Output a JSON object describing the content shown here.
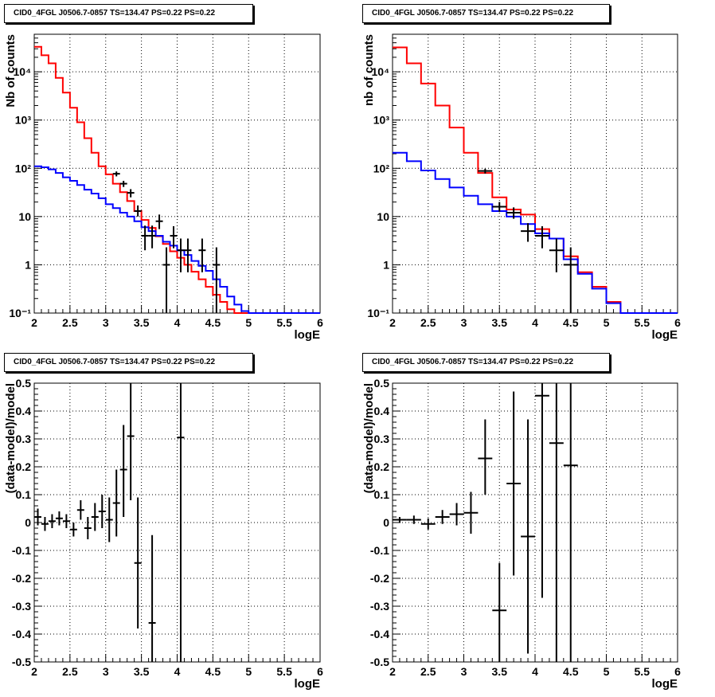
{
  "colors": {
    "data": "#000000",
    "total_model": "#ff0000",
    "component_model": "#0000ff"
  },
  "chart_data": [
    {
      "type": "line",
      "title": "CID0_4FGL J0506.7-0857 TS=134.47 PS=0.22 PS=0.22",
      "xlabel": "logE",
      "ylabel": "Nb of counts",
      "xlim": [
        2,
        6
      ],
      "ylim": [
        0.1,
        60000
      ],
      "yscale": "log",
      "grid": true,
      "xticks": [
        "2",
        "2.5",
        "3",
        "3.5",
        "4",
        "4.5",
        "5",
        "5.5",
        "6"
      ],
      "yticks": [
        {
          "value": 0.1,
          "label": "10⁻¹"
        },
        {
          "value": 1,
          "label": "1"
        },
        {
          "value": 10,
          "label": "10"
        },
        {
          "value": 100,
          "label": "10²"
        },
        {
          "value": 1000,
          "label": "10³"
        },
        {
          "value": 10000,
          "label": "10⁴"
        }
      ],
      "bin_edges": [
        2,
        2.1,
        2.2,
        2.3,
        2.4,
        2.5,
        2.6,
        2.7,
        2.8,
        2.9,
        3,
        3.1,
        3.2,
        3.3,
        3.4,
        3.5,
        3.6,
        3.7,
        3.8,
        3.9,
        4,
        4.1,
        4.2,
        4.3,
        4.4,
        4.5,
        4.6,
        4.7,
        4.8,
        4.9,
        5,
        5.1,
        5.2,
        5.3,
        5.4,
        5.5,
        5.6,
        5.7,
        5.8,
        5.9,
        6
      ],
      "series": [
        {
          "role": "total_model",
          "kind": "hist",
          "values": [
            33000,
            22000,
            15000,
            7500,
            3700,
            1800,
            900,
            420,
            210,
            110,
            75,
            48,
            32,
            21,
            13,
            8.5,
            5.8,
            3.9,
            2.7,
            1.9,
            1.4,
            1.0,
            0.72,
            0.5,
            0.35,
            0.24,
            0.17,
            0.12,
            0.1,
            0.1,
            0.1,
            0.1,
            0.1,
            0.1,
            0.1,
            0.1,
            0.1,
            0.1,
            0.1,
            0.1
          ]
        },
        {
          "role": "component_model",
          "kind": "hist",
          "values": [
            110,
            105,
            95,
            80,
            65,
            55,
            45,
            36,
            30,
            24,
            18,
            15,
            12,
            10,
            8,
            6,
            5,
            4,
            3,
            2.5,
            2,
            1.6,
            1.2,
            0.95,
            0.75,
            0.5,
            0.35,
            0.22,
            0.15,
            0.11,
            0.1,
            0.1,
            0.1,
            0.1,
            0.1,
            0.1,
            0.1,
            0.1,
            0.1,
            0.1
          ]
        },
        {
          "role": "data",
          "kind": "points",
          "points": [
            {
              "x": 3.15,
              "y": 77,
              "ylo": 68,
              "yhi": 86
            },
            {
              "x": 3.25,
              "y": 48,
              "ylo": 41,
              "yhi": 55
            },
            {
              "x": 3.35,
              "y": 31,
              "ylo": 25,
              "yhi": 37
            },
            {
              "x": 3.45,
              "y": 13,
              "ylo": 10,
              "yhi": 17
            },
            {
              "x": 3.55,
              "y": 4,
              "ylo": 2,
              "yhi": 6.5
            },
            {
              "x": 3.65,
              "y": 4,
              "ylo": 2.2,
              "yhi": 6.5
            },
            {
              "x": 3.75,
              "y": 8,
              "ylo": 5.5,
              "yhi": 11
            },
            {
              "x": 3.85,
              "y": 1,
              "ylo": 0.1,
              "yhi": 2.3
            },
            {
              "x": 3.95,
              "y": 4,
              "ylo": 2.2,
              "yhi": 6.3
            },
            {
              "x": 4.05,
              "y": 2,
              "ylo": 0.7,
              "yhi": 3.5
            },
            {
              "x": 4.15,
              "y": 2,
              "ylo": 0.7,
              "yhi": 3.5
            },
            {
              "x": 4.35,
              "y": 2,
              "ylo": 0.7,
              "yhi": 3.5
            },
            {
              "x": 4.55,
              "y": 1,
              "ylo": 0.1,
              "yhi": 2.3
            }
          ]
        }
      ]
    },
    {
      "type": "line",
      "title": "CID0_4FGL J0506.7-0857 TS=134.47 PS=0.22 PS=0.22",
      "xlabel": "logE",
      "ylabel": "nb of counts",
      "xlim": [
        2,
        6
      ],
      "ylim": [
        0.1,
        60000
      ],
      "yscale": "log",
      "grid": true,
      "xticks": [
        "2",
        "2.5",
        "3",
        "3.5",
        "4",
        "4.5",
        "5",
        "5.5",
        "6"
      ],
      "yticks": [
        {
          "value": 0.1,
          "label": "10⁻¹"
        },
        {
          "value": 1,
          "label": "1"
        },
        {
          "value": 10,
          "label": "10"
        },
        {
          "value": 100,
          "label": "10²"
        },
        {
          "value": 1000,
          "label": "10³"
        },
        {
          "value": 10000,
          "label": "10⁴"
        }
      ],
      "bin_edges": [
        2,
        2.2,
        2.4,
        2.6,
        2.8,
        3,
        3.2,
        3.4,
        3.6,
        3.8,
        4,
        4.2,
        4.4,
        4.6,
        4.8,
        5,
        5.2,
        5.4,
        5.6,
        5.8,
        6
      ],
      "series": [
        {
          "role": "total_model",
          "kind": "hist",
          "values": [
            32000,
            15000,
            5700,
            2000,
            700,
            210,
            80,
            25,
            14,
            11,
            5.5,
            3.5,
            1.5,
            0.7,
            0.35,
            0.17,
            0.1,
            0.1,
            0.1,
            0.1
          ]
        },
        {
          "role": "component_model",
          "kind": "hist",
          "values": [
            210,
            140,
            90,
            60,
            40,
            27,
            18,
            13,
            10,
            7,
            4.5,
            3.5,
            1.3,
            0.65,
            0.32,
            0.16,
            0.1,
            0.1,
            0.1,
            0.1
          ]
        },
        {
          "role": "data",
          "kind": "points",
          "points": [
            {
              "x": 3.3,
              "y": 88,
              "ylo": 78,
              "yhi": 98
            },
            {
              "x": 3.5,
              "y": 16,
              "ylo": 12.5,
              "yhi": 20
            },
            {
              "x": 3.7,
              "y": 12,
              "ylo": 9,
              "yhi": 15.5
            },
            {
              "x": 3.9,
              "y": 5,
              "ylo": 3,
              "yhi": 7.3
            },
            {
              "x": 4.1,
              "y": 4,
              "ylo": 2.2,
              "yhi": 6.3
            },
            {
              "x": 4.3,
              "y": 2,
              "ylo": 0.7,
              "yhi": 3.5
            },
            {
              "x": 4.5,
              "y": 1,
              "ylo": 0.1,
              "yhi": 2.3
            }
          ]
        }
      ]
    },
    {
      "type": "scatter",
      "title": "CID0_4FGL J0506.7-0857 TS=134.47 PS=0.22 PS=0.22",
      "xlabel": "logE",
      "ylabel": "(data-model)/model",
      "xlim": [
        2,
        6
      ],
      "ylim": [
        -0.5,
        0.5
      ],
      "grid": true,
      "xticks": [
        "2",
        "2.5",
        "3",
        "3.5",
        "4",
        "4.5",
        "5",
        "5.5",
        "6"
      ],
      "yticks": [
        "-0.5",
        "-0.4",
        "-0.3",
        "-0.2",
        "-0.1",
        "0",
        "0.1",
        "0.2",
        "0.3",
        "0.4",
        "0.5"
      ],
      "bin_width": 0.1,
      "series": [
        {
          "role": "data",
          "kind": "points",
          "points": [
            {
              "x": 2.05,
              "y": 0.02,
              "ylo": -0.01,
              "yhi": 0.05
            },
            {
              "x": 2.15,
              "y": -0.005,
              "ylo": -0.03,
              "yhi": 0.02
            },
            {
              "x": 2.25,
              "y": 0.005,
              "ylo": -0.02,
              "yhi": 0.03
            },
            {
              "x": 2.35,
              "y": 0.015,
              "ylo": -0.01,
              "yhi": 0.04
            },
            {
              "x": 2.45,
              "y": 0.005,
              "ylo": -0.02,
              "yhi": 0.03
            },
            {
              "x": 2.55,
              "y": -0.025,
              "ylo": -0.05,
              "yhi": 0.0
            },
            {
              "x": 2.65,
              "y": 0.045,
              "ylo": 0.01,
              "yhi": 0.08
            },
            {
              "x": 2.75,
              "y": -0.02,
              "ylo": -0.06,
              "yhi": 0.02
            },
            {
              "x": 2.85,
              "y": 0.02,
              "ylo": -0.03,
              "yhi": 0.07
            },
            {
              "x": 2.95,
              "y": 0.04,
              "ylo": -0.02,
              "yhi": 0.1
            },
            {
              "x": 3.05,
              "y": 0.01,
              "ylo": -0.07,
              "yhi": 0.09
            },
            {
              "x": 3.15,
              "y": 0.07,
              "ylo": -0.05,
              "yhi": 0.19
            },
            {
              "x": 3.25,
              "y": 0.19,
              "ylo": 0.02,
              "yhi": 0.35
            },
            {
              "x": 3.35,
              "y": 0.31,
              "ylo": 0.08,
              "yhi": 0.5
            },
            {
              "x": 3.45,
              "y": -0.145,
              "ylo": -0.38,
              "yhi": 0.09
            },
            {
              "x": 3.65,
              "y": -0.36,
              "ylo": -0.5,
              "yhi": -0.045
            },
            {
              "x": 4.05,
              "y": 0.305,
              "ylo": -0.5,
              "yhi": 0.5
            }
          ]
        }
      ]
    },
    {
      "type": "scatter",
      "title": "CID0_4FGL J0506.7-0857 TS=134.47 PS=0.22 PS=0.22",
      "xlabel": "logE",
      "ylabel": "(data-model)/model",
      "xlim": [
        2,
        6
      ],
      "ylim": [
        -0.5,
        0.5
      ],
      "grid": true,
      "xticks": [
        "2",
        "2.5",
        "3",
        "3.5",
        "4",
        "4.5",
        "5",
        "5.5",
        "6"
      ],
      "yticks": [
        "-0.5",
        "-0.4",
        "-0.3",
        "-0.2",
        "-0.1",
        "0",
        "0.1",
        "0.2",
        "0.3",
        "0.4",
        "0.5"
      ],
      "bin_width": 0.2,
      "series": [
        {
          "role": "data",
          "kind": "points",
          "points": [
            {
              "x": 2.1,
              "y": 0.01,
              "ylo": 0.0,
              "yhi": 0.02
            },
            {
              "x": 2.3,
              "y": 0.01,
              "ylo": -0.005,
              "yhi": 0.025
            },
            {
              "x": 2.5,
              "y": -0.005,
              "ylo": -0.025,
              "yhi": 0.015
            },
            {
              "x": 2.7,
              "y": 0.02,
              "ylo": -0.005,
              "yhi": 0.045
            },
            {
              "x": 2.9,
              "y": 0.03,
              "ylo": -0.01,
              "yhi": 0.07
            },
            {
              "x": 3.1,
              "y": 0.035,
              "ylo": -0.04,
              "yhi": 0.11
            },
            {
              "x": 3.3,
              "y": 0.23,
              "ylo": 0.1,
              "yhi": 0.37
            },
            {
              "x": 3.5,
              "y": -0.315,
              "ylo": -0.5,
              "yhi": -0.145
            },
            {
              "x": 3.7,
              "y": 0.14,
              "ylo": -0.19,
              "yhi": 0.47
            },
            {
              "x": 3.9,
              "y": -0.05,
              "ylo": -0.47,
              "yhi": 0.37
            },
            {
              "x": 4.1,
              "y": 0.455,
              "ylo": -0.27,
              "yhi": 0.5
            },
            {
              "x": 4.3,
              "y": 0.285,
              "ylo": -0.5,
              "yhi": 0.5
            },
            {
              "x": 4.5,
              "y": 0.205,
              "ylo": -0.5,
              "yhi": 0.5
            }
          ]
        }
      ]
    }
  ]
}
